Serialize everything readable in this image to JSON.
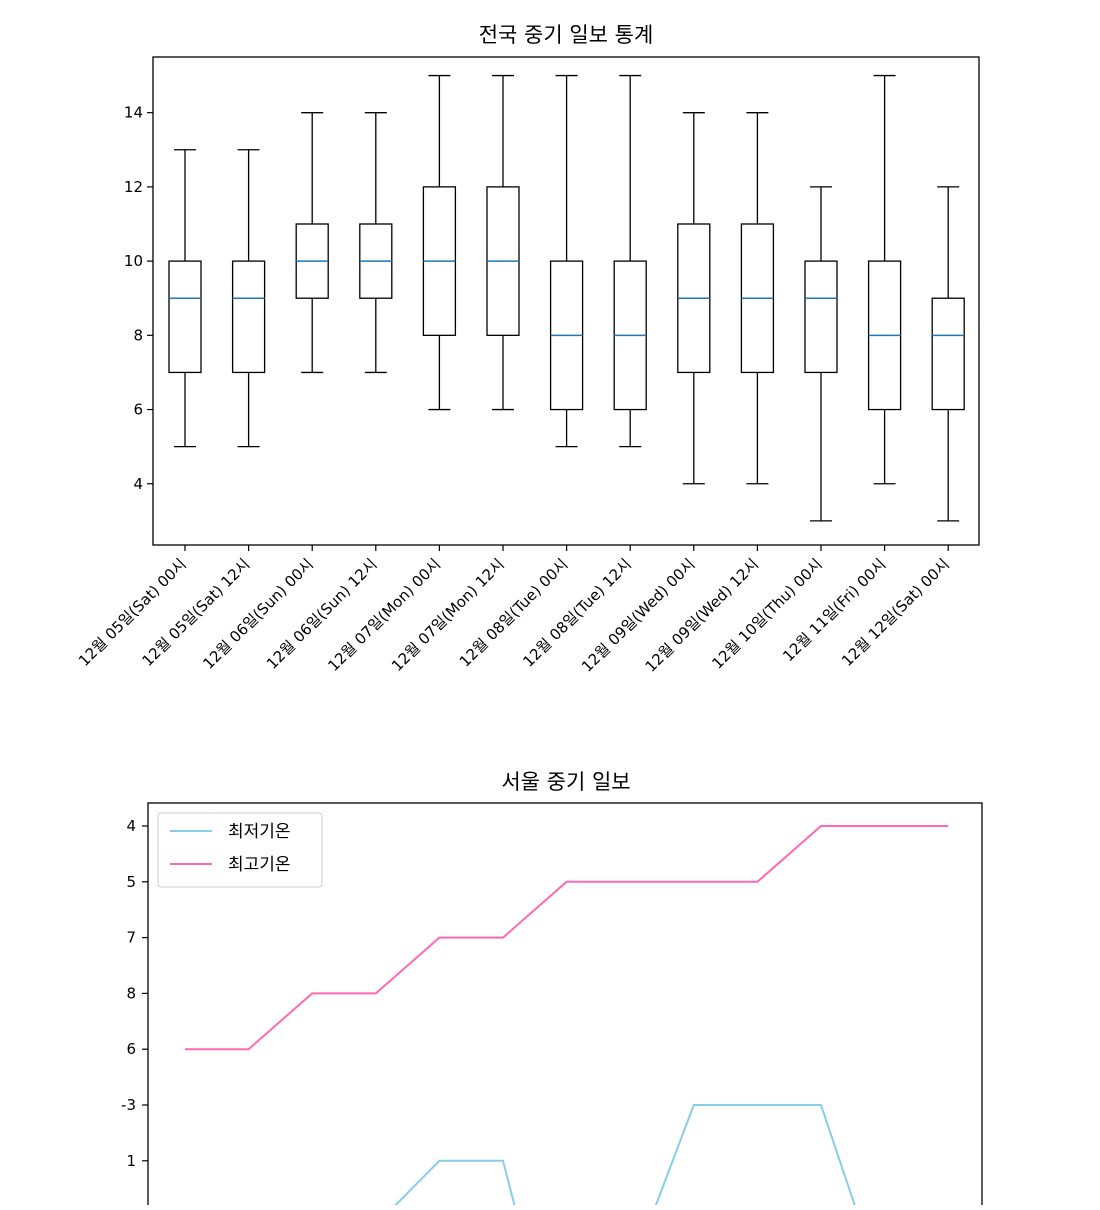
{
  "colors": {
    "box": "#000000",
    "median": "#1f77b4",
    "low_line": "#87ceeb",
    "high_line": "#ff69b4",
    "legend_border": "#cccccc"
  },
  "chart_data": [
    {
      "type": "box",
      "title": "전국 중기 일보 통계",
      "xlabel": "",
      "ylabel": "",
      "ylim": [
        2.35,
        15.5
      ],
      "yticks": [
        "4",
        "6",
        "8",
        "10",
        "12",
        "14"
      ],
      "grid": false,
      "categories": [
        "12월 05일(Sat) 00시",
        "12월 05일(Sat) 12시",
        "12월 06일(Sun) 00시",
        "12월 06일(Sun) 12시",
        "12월 07일(Mon) 00시",
        "12월 07일(Mon) 12시",
        "12월 08일(Tue) 00시",
        "12월 08일(Tue) 12시",
        "12월 09일(Wed) 00시",
        "12월 09일(Wed) 12시",
        "12월 10일(Thu) 00시",
        "12월 11일(Fri) 00시",
        "12월 12일(Sat) 00시"
      ],
      "boxes": [
        {
          "min": 5,
          "q1": 7,
          "median": 9,
          "q3": 10,
          "max": 13
        },
        {
          "min": 5,
          "q1": 7,
          "median": 9,
          "q3": 10,
          "max": 13
        },
        {
          "min": 7,
          "q1": 9,
          "median": 10,
          "q3": 11,
          "max": 14
        },
        {
          "min": 7,
          "q1": 9,
          "median": 10,
          "q3": 11,
          "max": 14
        },
        {
          "min": 6,
          "q1": 8,
          "median": 10,
          "q3": 12,
          "max": 15
        },
        {
          "min": 6,
          "q1": 8,
          "median": 10,
          "q3": 12,
          "max": 15
        },
        {
          "min": 5,
          "q1": 6,
          "median": 8,
          "q3": 10,
          "max": 15
        },
        {
          "min": 5,
          "q1": 6,
          "median": 8,
          "q3": 10,
          "max": 15
        },
        {
          "min": 4,
          "q1": 7,
          "median": 9,
          "q3": 11,
          "max": 14
        },
        {
          "min": 4,
          "q1": 7,
          "median": 9,
          "q3": 11,
          "max": 14
        },
        {
          "min": 3,
          "q1": 7,
          "median": 9,
          "q3": 10,
          "max": 12
        },
        {
          "min": 4,
          "q1": 6,
          "median": 8,
          "q3": 10,
          "max": 15
        },
        {
          "min": 3,
          "q1": 6,
          "median": 8,
          "q3": 9,
          "max": 12
        }
      ]
    },
    {
      "type": "line",
      "title": "서울 중기 일보",
      "xlabel": "",
      "ylabel": "",
      "y_categories": [
        "4",
        "5",
        "7",
        "8",
        "6",
        "-3",
        "1"
      ],
      "y_axis_note_order_top_to_bottom": true,
      "grid": false,
      "legend": "top-left",
      "series": [
        {
          "name": "최저기온",
          "color": "#87ceeb",
          "values": [
            null,
            null,
            null,
            null,
            "1",
            "1",
            null,
            null,
            "-3",
            "-3",
            "-3",
            null,
            null
          ]
        },
        {
          "name": "최고기온",
          "color": "#ff69b4",
          "values": [
            "6",
            "6",
            "8",
            "8",
            "7",
            "7",
            "5",
            "5",
            "5",
            "5",
            "4",
            "4",
            "4"
          ]
        }
      ]
    }
  ]
}
